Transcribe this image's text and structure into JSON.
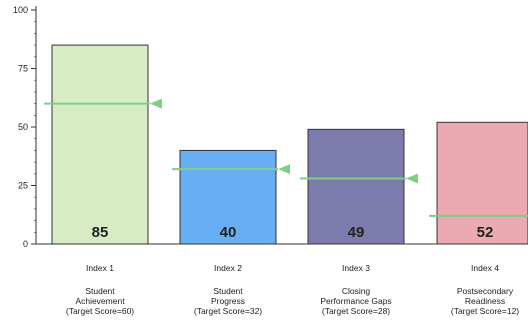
{
  "chart_data": {
    "type": "bar",
    "title": "",
    "xlabel": "",
    "ylabel": "",
    "ylim": [
      0,
      100
    ],
    "yticks": [
      0,
      25,
      50,
      75,
      100
    ],
    "grid": false,
    "bars": [
      {
        "index_label": "Index 1",
        "description": [
          "Student",
          "Achievement",
          "(Target Score=60)"
        ],
        "value": 85,
        "target": 60,
        "value_label": "85",
        "color": "#d7ebc5"
      },
      {
        "index_label": "Index 2",
        "description": [
          "Student",
          "Progress",
          "(Target Score=32)"
        ],
        "value": 40,
        "target": 32,
        "value_label": "40",
        "color": "#67aef3"
      },
      {
        "index_label": "Index 3",
        "description": [
          "Closing",
          "Performance Gaps",
          "(Target Score=28)"
        ],
        "value": 49,
        "target": 28,
        "value_label": "49",
        "color": "#7c7bab"
      },
      {
        "index_label": "Index 4",
        "description": [
          "Postsecondary",
          "Readiness",
          "(Target Score=12)"
        ],
        "value": 52,
        "target": 12,
        "value_label": "52",
        "color": "#eba9b1"
      }
    ],
    "target_marker_color": "#7fcf84"
  }
}
